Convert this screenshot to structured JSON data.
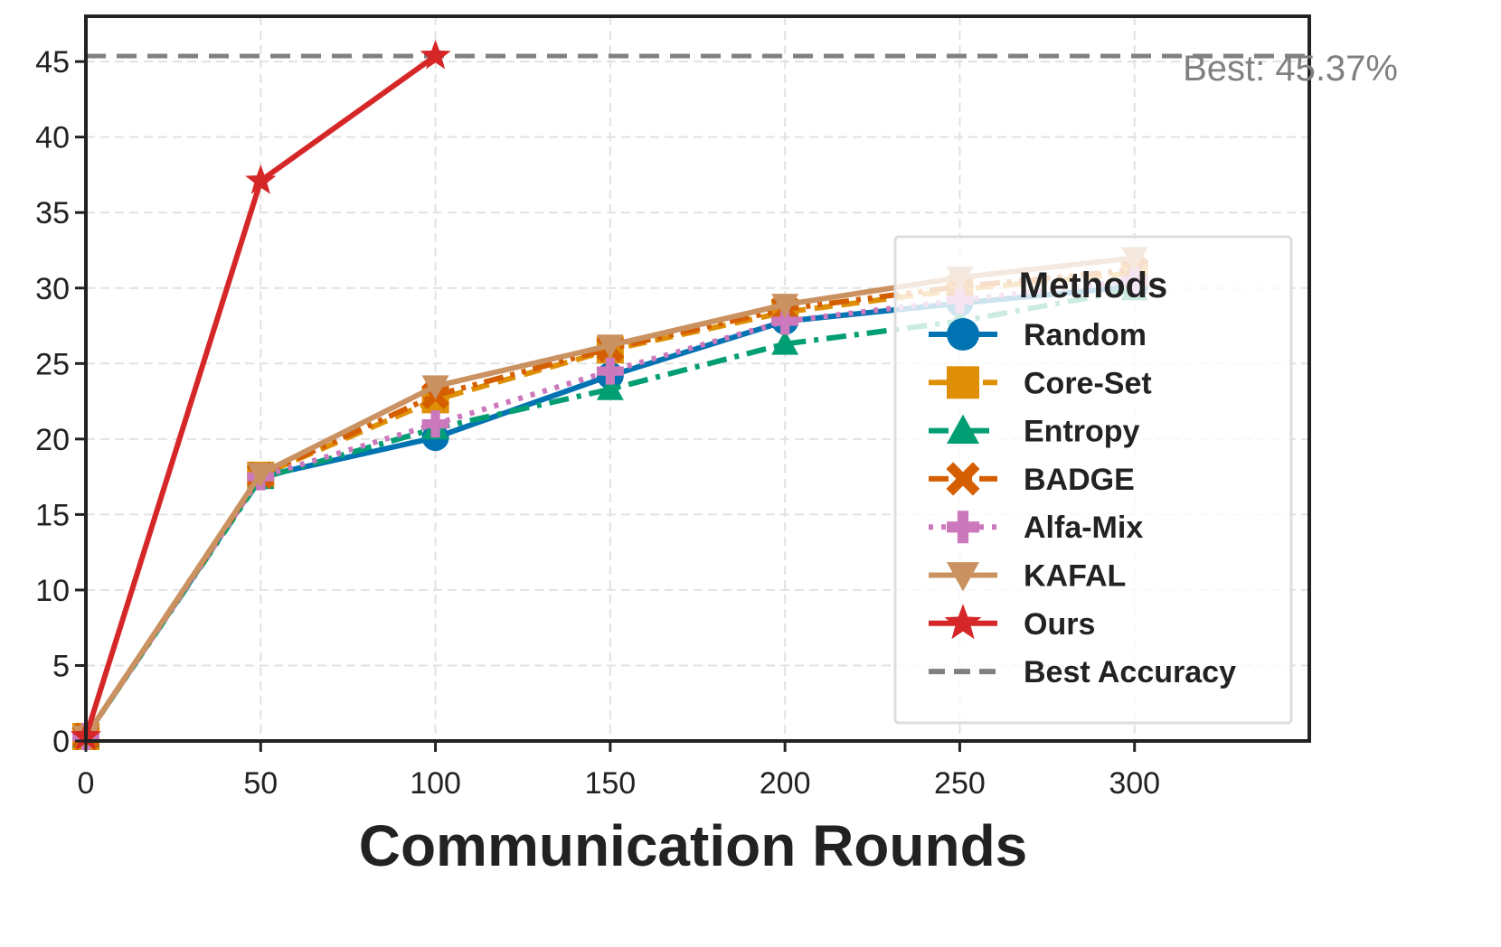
{
  "chart_data": {
    "type": "line",
    "title": "",
    "xlabel": "Communication Rounds",
    "ylabel": "",
    "xlim": [
      0,
      350
    ],
    "ylim": [
      0,
      48
    ],
    "xticks": [
      0,
      50,
      100,
      150,
      200,
      250,
      300
    ],
    "yticks": [
      0,
      5,
      10,
      15,
      20,
      25,
      30,
      35,
      40,
      45
    ],
    "grid": true,
    "legend_title": "Methods",
    "legend_position": "center-right",
    "series": [
      {
        "name": "Random",
        "color": "#0173b2",
        "marker": "circle",
        "dash": "solid",
        "x": [
          0,
          50,
          100,
          150,
          200,
          250,
          300
        ],
        "values": [
          0.3,
          17.5,
          20.1,
          24.2,
          27.8,
          29.0,
          30.1
        ]
      },
      {
        "name": "Core-Set",
        "color": "#de8f05",
        "marker": "square",
        "dash": "dashed",
        "x": [
          0,
          50,
          100,
          150,
          200,
          250,
          300
        ],
        "values": [
          0.3,
          17.6,
          22.6,
          25.9,
          28.4,
          29.9,
          31.0
        ]
      },
      {
        "name": "Entropy",
        "color": "#029e73",
        "marker": "triangle-up",
        "dash": "dashdot",
        "x": [
          0,
          50,
          100,
          150,
          200,
          250,
          300
        ],
        "values": [
          0.3,
          17.4,
          20.7,
          23.3,
          26.3,
          27.8,
          29.9
        ]
      },
      {
        "name": "BADGE",
        "color": "#d55e00",
        "marker": "x",
        "dash": "dashdotdot",
        "x": [
          0,
          50,
          100,
          150,
          200,
          250,
          300
        ],
        "values": [
          0.3,
          17.6,
          22.9,
          26.0,
          28.6,
          30.1,
          31.2
        ]
      },
      {
        "name": "Alfa-Mix",
        "color": "#cc78bc",
        "marker": "plus",
        "dash": "dotted",
        "x": [
          0,
          50,
          100,
          150,
          200,
          250,
          300
        ],
        "values": [
          0.3,
          17.5,
          21.0,
          24.5,
          27.8,
          29.2,
          30.5
        ]
      },
      {
        "name": "KAFAL",
        "color": "#ca9161",
        "marker": "triangle-down",
        "dash": "solid",
        "x": [
          0,
          50,
          100,
          150,
          200,
          250,
          300
        ],
        "values": [
          0.3,
          17.7,
          23.5,
          26.2,
          28.9,
          30.7,
          32.0
        ]
      },
      {
        "name": "Ours",
        "color": "#d62728",
        "marker": "star",
        "dash": "solid",
        "x": [
          0,
          50,
          100
        ],
        "values": [
          0.3,
          37.1,
          45.37
        ]
      }
    ],
    "reference_line": {
      "name": "Best Accuracy",
      "value": 45.37,
      "color": "#808080",
      "dash": "dashed"
    },
    "annotations": [
      {
        "text": "Best: 45.37%"
      }
    ]
  }
}
